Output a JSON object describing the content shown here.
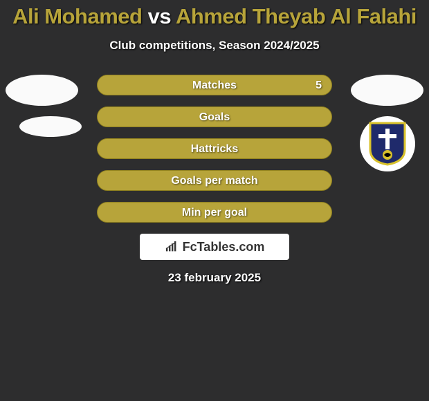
{
  "title": {
    "player1": "Ali Mohamed",
    "vs": "vs",
    "player2": "Ahmed Theyab Al Falahi"
  },
  "subtitle": "Club competitions, Season 2024/2025",
  "colors": {
    "accent": "#b7a43a",
    "accent_border": "#8f801f",
    "bg": "#2d2d2e"
  },
  "stats": [
    {
      "label": "Matches",
      "value": "5",
      "fill_pct": 100,
      "show_value": true
    },
    {
      "label": "Goals",
      "value": "",
      "fill_pct": 98,
      "show_value": false
    },
    {
      "label": "Hattricks",
      "value": "",
      "fill_pct": 100,
      "show_value": false
    },
    {
      "label": "Goals per match",
      "value": "",
      "fill_pct": 100,
      "show_value": false
    },
    {
      "label": "Min per goal",
      "value": "",
      "fill_pct": 98,
      "show_value": false
    }
  ],
  "attribution": "FcTables.com",
  "date": "23 february 2025"
}
